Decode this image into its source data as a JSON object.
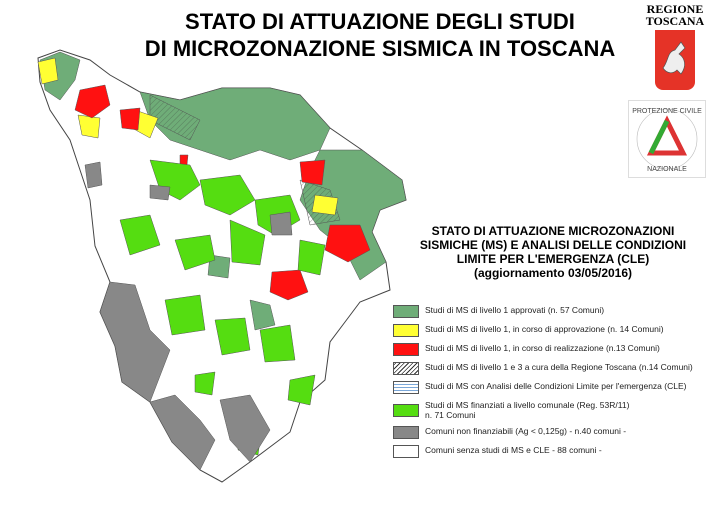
{
  "title": {
    "line1": "STATO DI ATTUAZIONE DEGLI STUDI",
    "line2": "DI MICROZONAZIONE SISMICA IN TOSCANA"
  },
  "logos": {
    "regione": "REGIONE TOSCANA",
    "regione_line1": "REGIONE",
    "regione_line2": "TOSCANA",
    "protezione": "PROTEZIONE CIVILE NAZIONALE"
  },
  "subtitle": {
    "line1": "STATO DI ATTUAZIONE MICROZONAZIONI",
    "line2": "SISMICHE (MS) E ANALISI DELLE CONDIZIONI",
    "line3": "LIMITE PER L'EMERGENZA (CLE)",
    "line4": "(aggiornamento 03/05/2016)"
  },
  "colors": {
    "approvati": "#6fad78",
    "approvazione": "#ffff33",
    "realizzazione": "#ff1111",
    "finanziati": "#55dd11",
    "non_finanziabili": "#888888",
    "senza": "#ffffff"
  },
  "legend": [
    {
      "label": "Studi di MS di livello 1 approvati (n. 57 Comuni)",
      "color": "#6fad78"
    },
    {
      "label": "Studi di MS di livello 1, in corso di approvazione (n. 14 Comuni)",
      "color": "#ffff33"
    },
    {
      "label": "Studi di MS di livello 1, in corso di realizzazione (n.13 Comuni)",
      "color": "#ff1111"
    },
    {
      "label": "Studi di MS di livello 1 e 3 a cura della Regione Toscana (n.14 Comuni)",
      "pattern": "hatch"
    },
    {
      "label": "Studi di MS con Analisi delle Condizioni Limite per l'emergenza (CLE)",
      "pattern": "lines"
    },
    {
      "label": "Studi di MS finanziati a livello comunale (Reg. 53R/11)",
      "label2": "n. 71 Comuni",
      "color": "#55dd11"
    },
    {
      "label": "Comuni non finanziabili (Ag < 0,125g) - n.40 comuni -",
      "color": "#888888"
    },
    {
      "label": "Comuni senza studi di MS e CLE - 88 comuni -",
      "color": "#ffffff"
    }
  ]
}
